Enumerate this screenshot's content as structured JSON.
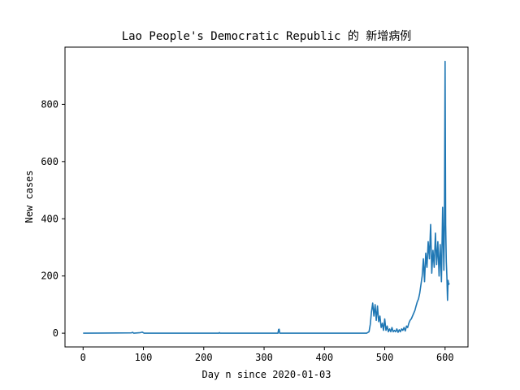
{
  "chart_data": {
    "type": "line",
    "title": "Lao People's Democratic Republic 的 新增病例",
    "xlabel": "Day n since 2020-01-03",
    "ylabel": "New cases",
    "xlim": [
      -30,
      638
    ],
    "ylim": [
      -48,
      1000
    ],
    "xticks": [
      0,
      100,
      200,
      300,
      400,
      500,
      600
    ],
    "yticks": [
      0,
      200,
      400,
      600,
      800
    ],
    "grid": false,
    "legend": "none",
    "series": [
      {
        "color": "#1f77b4",
        "points": [
          [
            0,
            0
          ],
          [
            80,
            1
          ],
          [
            82,
            3
          ],
          [
            84,
            0
          ],
          [
            95,
            2
          ],
          [
            98,
            4
          ],
          [
            101,
            0
          ],
          [
            225,
            0
          ],
          [
            226,
            2
          ],
          [
            227,
            0
          ],
          [
            323,
            0
          ],
          [
            324,
            13
          ],
          [
            325,
            14
          ],
          [
            326,
            0
          ],
          [
            470,
            0
          ],
          [
            474,
            5
          ],
          [
            476,
            30
          ],
          [
            478,
            75
          ],
          [
            480,
            105
          ],
          [
            482,
            60
          ],
          [
            484,
            100
          ],
          [
            486,
            45
          ],
          [
            488,
            95
          ],
          [
            490,
            40
          ],
          [
            492,
            60
          ],
          [
            494,
            20
          ],
          [
            496,
            35
          ],
          [
            498,
            10
          ],
          [
            500,
            50
          ],
          [
            502,
            10
          ],
          [
            504,
            25
          ],
          [
            506,
            5
          ],
          [
            508,
            15
          ],
          [
            510,
            5
          ],
          [
            512,
            20
          ],
          [
            514,
            5
          ],
          [
            516,
            10
          ],
          [
            518,
            5
          ],
          [
            520,
            15
          ],
          [
            522,
            3
          ],
          [
            524,
            12
          ],
          [
            526,
            5
          ],
          [
            528,
            15
          ],
          [
            530,
            10
          ],
          [
            532,
            20
          ],
          [
            534,
            8
          ],
          [
            536,
            25
          ],
          [
            538,
            20
          ],
          [
            540,
            35
          ],
          [
            542,
            45
          ],
          [
            544,
            50
          ],
          [
            546,
            60
          ],
          [
            548,
            70
          ],
          [
            550,
            80
          ],
          [
            552,
            95
          ],
          [
            554,
            110
          ],
          [
            556,
            120
          ],
          [
            558,
            140
          ],
          [
            560,
            170
          ],
          [
            562,
            200
          ],
          [
            564,
            260
          ],
          [
            566,
            180
          ],
          [
            568,
            280
          ],
          [
            570,
            230
          ],
          [
            572,
            320
          ],
          [
            574,
            260
          ],
          [
            576,
            380
          ],
          [
            578,
            210
          ],
          [
            580,
            290
          ],
          [
            582,
            230
          ],
          [
            584,
            350
          ],
          [
            586,
            240
          ],
          [
            588,
            320
          ],
          [
            590,
            200
          ],
          [
            592,
            310
          ],
          [
            594,
            180
          ],
          [
            596,
            440
          ],
          [
            598,
            220
          ],
          [
            599,
            380
          ],
          [
            600,
            950
          ],
          [
            601,
            380
          ],
          [
            602,
            250
          ],
          [
            603,
            200
          ],
          [
            604,
            115
          ],
          [
            605,
            185
          ],
          [
            606,
            170
          ],
          [
            607,
            175
          ]
        ]
      }
    ]
  }
}
